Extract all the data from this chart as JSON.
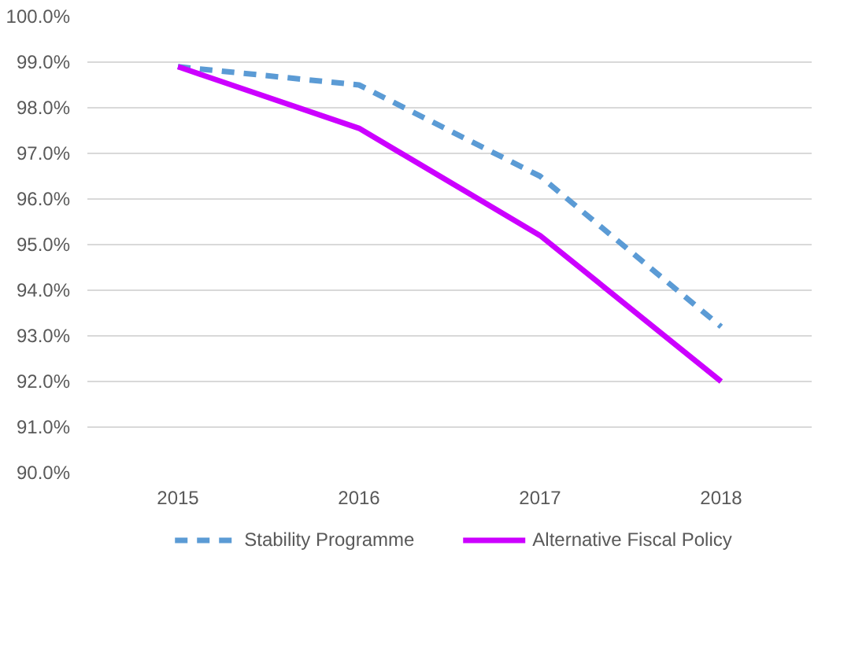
{
  "chart_data": {
    "type": "line",
    "categories": [
      "2015",
      "2016",
      "2017",
      "2018"
    ],
    "series": [
      {
        "name": "Stability Programme",
        "color": "#5b9bd5",
        "values": [
          98.9,
          98.5,
          96.5,
          93.2
        ],
        "line_style": "dashed"
      },
      {
        "name": "Alternative Fiscal Policy",
        "color": "#cc00ff",
        "values": [
          98.9,
          97.55,
          95.2,
          92.0
        ],
        "line_style": "solid"
      }
    ],
    "ylim": [
      90,
      100
    ],
    "yticks": [
      {
        "value": 90,
        "label": "90.0%"
      },
      {
        "value": 91,
        "label": "91.0%"
      },
      {
        "value": 92,
        "label": "92.0%"
      },
      {
        "value": 93,
        "label": "93.0%"
      },
      {
        "value": 94,
        "label": "94.0%"
      },
      {
        "value": 95,
        "label": "95.0%"
      },
      {
        "value": 96,
        "label": "96.0%"
      },
      {
        "value": 97,
        "label": "97.0%"
      },
      {
        "value": 98,
        "label": "98.0%"
      },
      {
        "value": 99,
        "label": "99.0%"
      },
      {
        "value": 100,
        "label": "100.0%"
      }
    ],
    "grid": "y",
    "legend": "bottom"
  }
}
